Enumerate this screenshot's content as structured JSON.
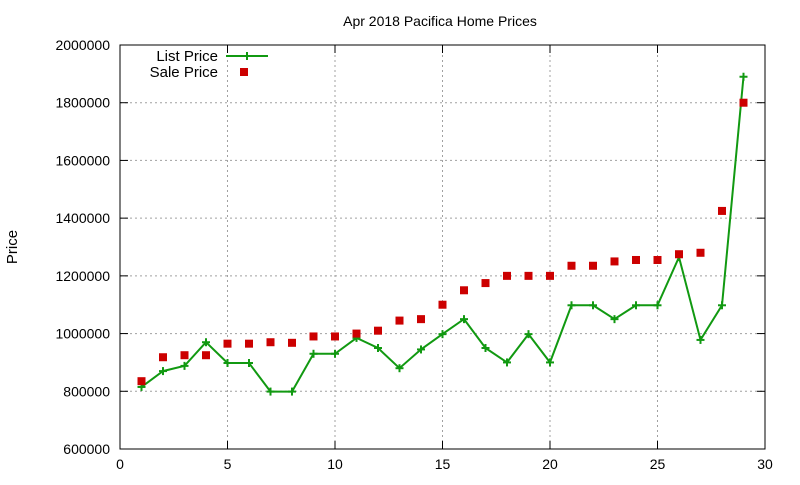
{
  "chart_data": {
    "type": "line",
    "title": "Apr 2018 Pacifica Home Prices",
    "xlabel": "",
    "ylabel": "Price",
    "xlim": [
      0,
      30
    ],
    "ylim": [
      600000,
      2000000
    ],
    "x_ticks": [
      0,
      5,
      10,
      15,
      20,
      25,
      30
    ],
    "y_ticks": [
      600000,
      800000,
      1000000,
      1200000,
      1400000,
      1600000,
      1800000,
      2000000
    ],
    "grid": true,
    "legend_position": "top-left",
    "x": [
      1,
      2,
      3,
      4,
      5,
      6,
      7,
      8,
      9,
      10,
      11,
      12,
      13,
      14,
      15,
      16,
      17,
      18,
      19,
      20,
      21,
      22,
      23,
      24,
      25,
      26,
      27,
      28,
      29
    ],
    "series": [
      {
        "name": "List Price",
        "style": "line-with-plus-markers",
        "color": "#119911",
        "values": [
          815000,
          870000,
          888000,
          970000,
          898000,
          898000,
          799000,
          799000,
          930000,
          930000,
          985000,
          950000,
          880000,
          945000,
          998000,
          1050000,
          950000,
          900000,
          998000,
          900000,
          1098000,
          1098000,
          1050000,
          1098000,
          1098000,
          1265000,
          978000,
          1098000,
          1890000
        ]
      },
      {
        "name": "Sale Price",
        "style": "square-markers",
        "color": "#cc0000",
        "values": [
          835000,
          918000,
          925000,
          925000,
          965000,
          965000,
          970000,
          968000,
          990000,
          990000,
          1000000,
          1010000,
          1045000,
          1050000,
          1100000,
          1150000,
          1175000,
          1200000,
          1200000,
          1200000,
          1235000,
          1235000,
          1250000,
          1255000,
          1255000,
          1275000,
          1280000,
          1425000,
          1800000
        ]
      }
    ]
  }
}
